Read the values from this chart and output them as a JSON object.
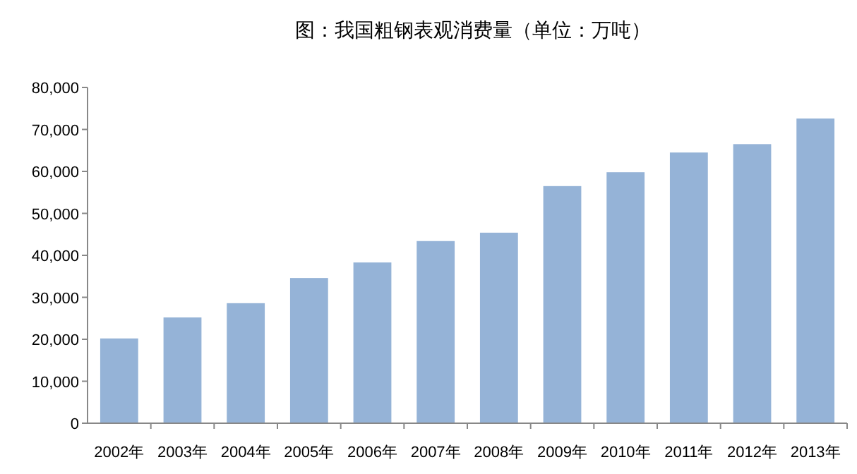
{
  "chart_data": {
    "type": "bar",
    "title": "图：我国粗钢表观消费量（单位：万吨）",
    "categories": [
      "2002年",
      "2003年",
      "2004年",
      "2005年",
      "2006年",
      "2007年",
      "2008年",
      "2009年",
      "2010年",
      "2011年",
      "2012年",
      "2013年"
    ],
    "values": [
      20200,
      25200,
      28600,
      34600,
      38300,
      43400,
      45400,
      56500,
      59800,
      64500,
      66500,
      72600
    ],
    "color": "#95b3d7",
    "ylim": [
      0,
      80000
    ],
    "yticks": [
      0,
      {
        "value": 10000,
        "label": "10,000"
      },
      {
        "value": 20000,
        "label": "20,000"
      },
      {
        "value": 30000,
        "label": "30,000"
      },
      {
        "value": 40000,
        "label": "40,000"
      },
      {
        "value": 50000,
        "label": "50,000"
      },
      {
        "value": 60000,
        "label": "60,000"
      },
      {
        "value": 70000,
        "label": "70,000"
      },
      {
        "value": 80000,
        "label": "80,000"
      }
    ],
    "grid": false
  }
}
